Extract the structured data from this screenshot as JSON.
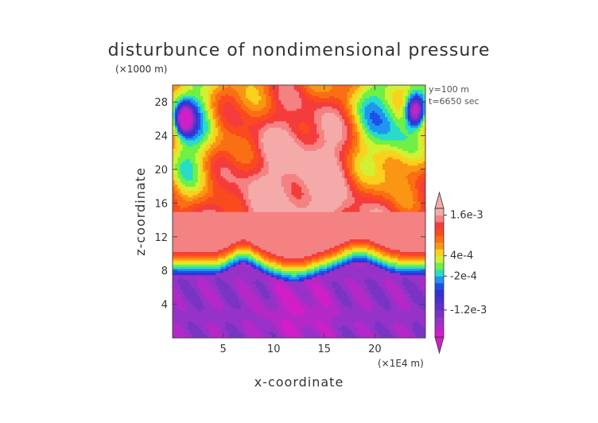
{
  "chart_data": {
    "type": "heatmap",
    "title": "disturbunce of nondimensional pressure",
    "xlabel": "x-coordinate",
    "ylabel": "z-coordinate",
    "x_unit": "(×1E4 m)",
    "y_unit": "(×1000 m)",
    "x_ticks": [
      "5",
      "10",
      "15",
      "20"
    ],
    "y_ticks": [
      "4",
      "8",
      "12",
      "16",
      "20",
      "24",
      "28"
    ],
    "x_tick_values": [
      5,
      10,
      15,
      20
    ],
    "y_tick_values": [
      4,
      8,
      12,
      16,
      20,
      24,
      28
    ],
    "xlim": [
      0,
      25
    ],
    "ylim": [
      0,
      30
    ],
    "info_lines": [
      "y=100 m",
      "t=6650 sec"
    ],
    "colorbar": {
      "tick_labels": [
        "1.6e-3",
        "4e-4",
        "-2e-4",
        "-1.2e-3"
      ],
      "tick_levels": [
        0.0016,
        0.0004,
        -0.0002,
        -0.0012
      ],
      "levels": [
        -0.002,
        -0.0018,
        -0.0016,
        -0.0014,
        -0.0012,
        -0.001,
        -0.0008,
        -0.0006,
        -0.0004,
        -0.0002,
        0,
        0.0002,
        0.0004,
        0.0006,
        0.0008,
        0.001,
        0.0012,
        0.0014,
        0.0016,
        0.0018
      ],
      "colors": [
        "#d21ec8",
        "#b428c8",
        "#9632c8",
        "#7a34c4",
        "#6030c8",
        "#4a30d0",
        "#3232d2",
        "#1e50e6",
        "#1e96f0",
        "#28dcc8",
        "#6ef046",
        "#d2f032",
        "#fad21e",
        "#fa9614",
        "#fa6e14",
        "#fa4b1e",
        "#f53c3c",
        "#f58282",
        "#f5aaaa"
      ]
    }
  }
}
